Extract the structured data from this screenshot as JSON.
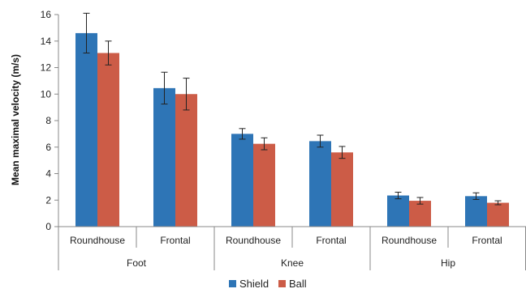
{
  "chart_data": {
    "type": "bar",
    "title": "",
    "xlabel": "",
    "ylabel": "Mean maximal velocity (m/s)",
    "ylim": [
      0,
      16
    ],
    "yticks": [
      0,
      2,
      4,
      6,
      8,
      10,
      12,
      14,
      16
    ],
    "grid": false,
    "legend_position": "bottom",
    "groups": [
      {
        "label": "Foot",
        "categories": [
          "Roundhouse",
          "Frontal"
        ]
      },
      {
        "label": "Knee",
        "categories": [
          "Roundhouse",
          "Frontal"
        ]
      },
      {
        "label": "Hip",
        "categories": [
          "Roundhouse",
          "Frontal"
        ]
      }
    ],
    "categories": [
      "Roundhouse",
      "Frontal",
      "Roundhouse",
      "Frontal",
      "Roundhouse",
      "Frontal"
    ],
    "series": [
      {
        "name": "Shield",
        "color": "#2e75b6",
        "values": [
          14.6,
          10.45,
          7.0,
          6.45,
          2.35,
          2.3
        ],
        "errors": [
          1.5,
          1.2,
          0.4,
          0.45,
          0.25,
          0.25
        ]
      },
      {
        "name": "Ball",
        "color": "#cc5c47",
        "values": [
          13.1,
          10.0,
          6.25,
          5.6,
          1.95,
          1.8
        ],
        "errors": [
          0.9,
          1.2,
          0.45,
          0.45,
          0.25,
          0.15
        ]
      }
    ]
  }
}
